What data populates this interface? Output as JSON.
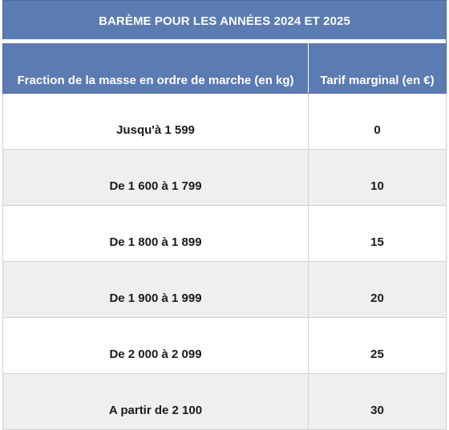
{
  "table": {
    "title": "BARÈME POUR LES ANNÉES 2024 ET 2025",
    "headers": [
      "Fraction de la masse en ordre de marche (en kg)",
      "Tarif marginal (en €)"
    ],
    "rows": [
      {
        "fraction": "Jusqu'à 1 599",
        "tarif": "0"
      },
      {
        "fraction": "De 1 600 à 1 799",
        "tarif": "10"
      },
      {
        "fraction": "De 1 800 à 1 899",
        "tarif": "15"
      },
      {
        "fraction": "De 1 900 à 1 999",
        "tarif": "20"
      },
      {
        "fraction": "De 2 000 à 2 099",
        "tarif": "25"
      },
      {
        "fraction": "A partir de 2 100",
        "tarif": "30"
      }
    ]
  },
  "colors": {
    "header_background": "#5b7bb3",
    "header_text": "#ffffff",
    "row_alt_background": "#efefef",
    "row_background": "#ffffff"
  }
}
